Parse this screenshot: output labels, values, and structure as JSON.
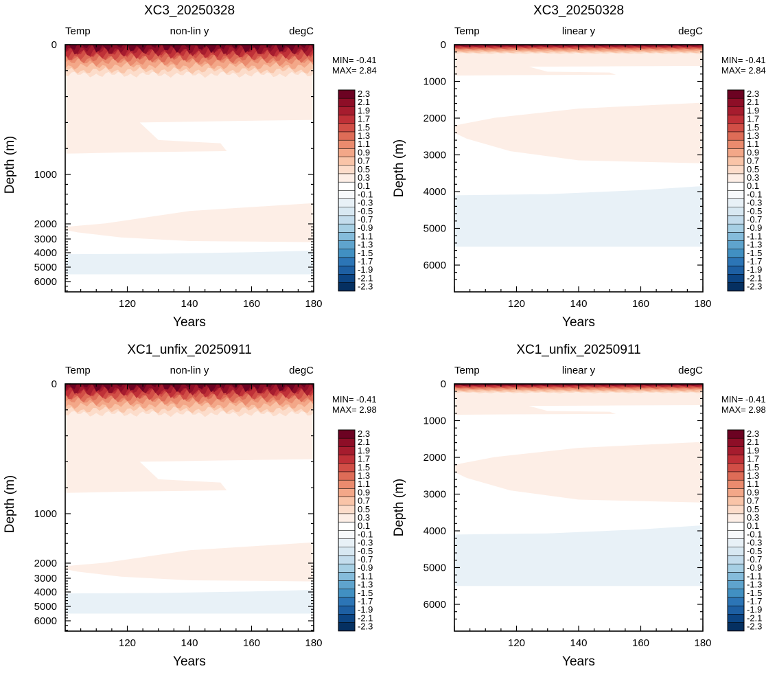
{
  "palette": [
    "#053061",
    "#0c4584",
    "#1d5fa3",
    "#2c75b6",
    "#4190c2",
    "#5fa4cd",
    "#85bcdb",
    "#a6cfe4",
    "#c3dcec",
    "#d8e8f2",
    "#e8f1f7",
    "#f7f9fb",
    "#ffffff",
    "#fdeee6",
    "#fcdcca",
    "#f9c4a8",
    "#f3a788",
    "#ea8b6e",
    "#de6c57",
    "#d14e46",
    "#bf3037",
    "#a61c2e",
    "#8e0e27",
    "#6c0222"
  ],
  "colorbar_labels": [
    "2.3",
    "2.1",
    "1.9",
    "1.7",
    "1.5",
    "1.3",
    "1.1",
    "0.9",
    "0.7",
    "0.5",
    "0.3",
    "0.1",
    "-0.1",
    "-0.3",
    "-0.5",
    "-0.7",
    "-0.9",
    "-1.1",
    "-1.3",
    "-1.5",
    "-1.7",
    "-1.9",
    "-2.1",
    "-2.3"
  ],
  "chart_data": [
    {
      "type": "contour",
      "title": "XC3_20250328",
      "left_label": "Temp",
      "center_label": "non-lin y",
      "right_label": "degC",
      "xlabel": "Years",
      "ylabel": "Depth (m)",
      "xlim": [
        100,
        180
      ],
      "xticks": [
        "120",
        "140",
        "160",
        "180"
      ],
      "yticks": [
        "0",
        "1000",
        "2000",
        "3000",
        "4000",
        "5000",
        "6000"
      ],
      "y_scale": "non-linear",
      "min_label": "MIN= -0.41",
      "max_label": "MAX=  2.84"
    },
    {
      "type": "contour",
      "title": "XC3_20250328",
      "left_label": "Temp",
      "center_label": "linear y",
      "right_label": "degC",
      "xlabel": "Years",
      "ylabel": "Depth (m)",
      "xlim": [
        100,
        180
      ],
      "xticks": [
        "120",
        "140",
        "160",
        "180"
      ],
      "yticks": [
        "0",
        "1000",
        "2000",
        "3000",
        "4000",
        "5000",
        "6000"
      ],
      "y_scale": "linear",
      "min_label": "MIN= -0.41",
      "max_label": "MAX=  2.84"
    },
    {
      "type": "contour",
      "title": "XC1_unfix_20250911",
      "left_label": "Temp",
      "center_label": "non-lin y",
      "right_label": "degC",
      "xlabel": "Years",
      "ylabel": "Depth (m)",
      "xlim": [
        100,
        180
      ],
      "xticks": [
        "120",
        "140",
        "160",
        "180"
      ],
      "yticks": [
        "0",
        "1000",
        "2000",
        "3000",
        "4000",
        "5000",
        "6000"
      ],
      "y_scale": "non-linear",
      "min_label": "MIN= -0.41",
      "max_label": "MAX=  2.98"
    },
    {
      "type": "contour",
      "title": "XC1_unfix_20250911",
      "left_label": "Temp",
      "center_label": "linear y",
      "right_label": "degC",
      "xlabel": "Years",
      "ylabel": "Depth (m)",
      "xlim": [
        100,
        180
      ],
      "xticks": [
        "120",
        "140",
        "160",
        "180"
      ],
      "yticks": [
        "0",
        "1000",
        "2000",
        "3000",
        "4000",
        "5000",
        "6000"
      ],
      "y_scale": "linear",
      "min_label": "MIN= -0.41",
      "max_label": "MAX=  2.98"
    }
  ]
}
